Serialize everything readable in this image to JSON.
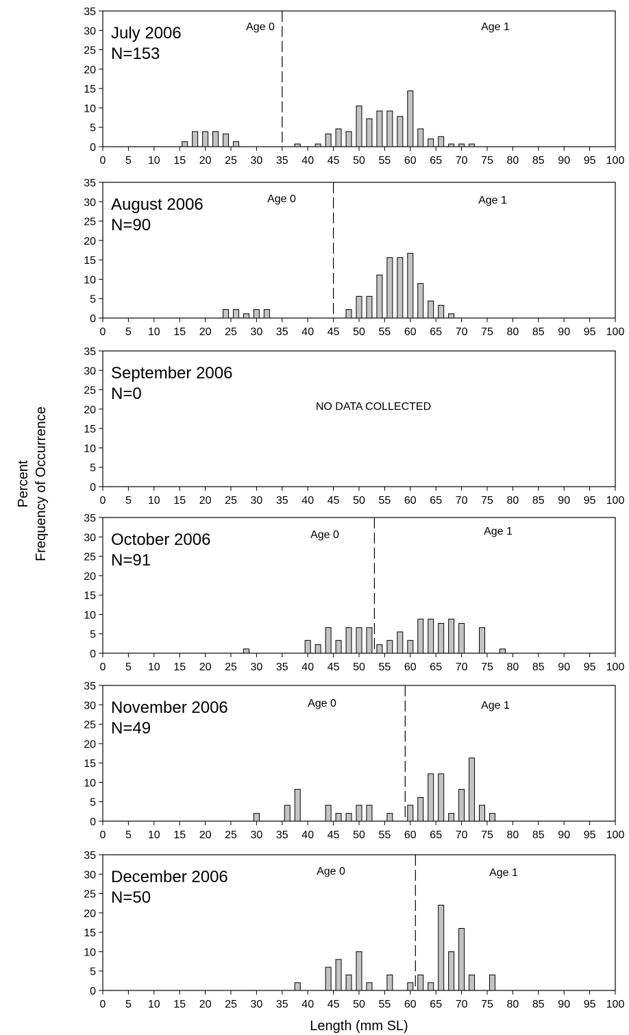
{
  "figure": {
    "ylabel_line1": "Percent",
    "ylabel_line2": "Frequency of Occurrence",
    "xlabel": "Length (mm SL)"
  },
  "chart_data": [
    {
      "type": "bar",
      "title": "July 2006",
      "subtitle": "N=153",
      "age0_label": "Age 0",
      "age1_label": "Age 1",
      "cutoff": 35,
      "note": "",
      "xlim": [
        0,
        100
      ],
      "ylim": [
        0,
        35
      ],
      "xticks": [
        0,
        5,
        10,
        15,
        20,
        25,
        30,
        35,
        40,
        45,
        50,
        55,
        60,
        65,
        70,
        75,
        80,
        85,
        90,
        95,
        100
      ],
      "yticks": [
        0,
        5,
        10,
        15,
        20,
        25,
        30,
        35
      ],
      "x": [
        16,
        18,
        20,
        22,
        24,
        26,
        38,
        42,
        44,
        46,
        48,
        50,
        52,
        54,
        56,
        58,
        60,
        62,
        64,
        66,
        68,
        70,
        72
      ],
      "values": [
        1.3,
        3.9,
        3.9,
        3.9,
        3.3,
        1.3,
        0.7,
        0.7,
        3.3,
        4.6,
        3.9,
        10.5,
        7.2,
        9.2,
        9.2,
        7.8,
        14.4,
        4.6,
        2.0,
        2.6,
        0.7,
        0.7,
        0.7
      ]
    },
    {
      "type": "bar",
      "title": "August 2006",
      "subtitle": "N=90",
      "age0_label": "Age 0",
      "age1_label": "Age 1",
      "cutoff": 45,
      "note": "",
      "xlim": [
        0,
        100
      ],
      "ylim": [
        0,
        35
      ],
      "xticks": [
        0,
        5,
        10,
        15,
        20,
        25,
        30,
        35,
        40,
        45,
        50,
        55,
        60,
        65,
        70,
        75,
        80,
        85,
        90,
        95,
        100
      ],
      "yticks": [
        0,
        5,
        10,
        15,
        20,
        25,
        30,
        35
      ],
      "x": [
        24,
        26,
        28,
        30,
        32,
        48,
        50,
        52,
        54,
        56,
        58,
        60,
        62,
        64,
        66,
        68
      ],
      "values": [
        2.2,
        2.2,
        1.1,
        2.2,
        2.2,
        2.2,
        5.6,
        5.6,
        11.1,
        15.6,
        15.6,
        16.7,
        8.9,
        4.4,
        3.3,
        1.1
      ]
    },
    {
      "type": "bar",
      "title": "September 2006",
      "subtitle": "N=0",
      "age0_label": "",
      "age1_label": "",
      "cutoff": null,
      "note": "NO DATA COLLECTED",
      "xlim": [
        0,
        100
      ],
      "ylim": [
        0,
        35
      ],
      "xticks": [
        0,
        5,
        10,
        15,
        20,
        25,
        30,
        35,
        40,
        45,
        50,
        55,
        60,
        65,
        70,
        75,
        80,
        85,
        90,
        95,
        100
      ],
      "yticks": [
        0,
        5,
        10,
        15,
        20,
        25,
        30,
        35
      ],
      "x": [],
      "values": []
    },
    {
      "type": "bar",
      "title": "October 2006",
      "subtitle": "N=91",
      "age0_label": "Age 0",
      "age1_label": "Age 1",
      "cutoff": 53,
      "note": "",
      "xlim": [
        0,
        100
      ],
      "ylim": [
        0,
        35
      ],
      "xticks": [
        0,
        5,
        10,
        15,
        20,
        25,
        30,
        35,
        40,
        45,
        50,
        55,
        60,
        65,
        70,
        75,
        80,
        85,
        90,
        95,
        100
      ],
      "yticks": [
        0,
        5,
        10,
        15,
        20,
        25,
        30,
        35
      ],
      "x": [
        28,
        40,
        42,
        44,
        46,
        48,
        50,
        52,
        54,
        56,
        58,
        60,
        62,
        64,
        66,
        68,
        70,
        74,
        78
      ],
      "values": [
        1.1,
        3.3,
        2.2,
        6.6,
        3.3,
        6.6,
        6.6,
        6.6,
        2.2,
        3.3,
        5.5,
        3.3,
        8.8,
        8.8,
        7.7,
        8.8,
        7.7,
        6.6,
        1.1
      ]
    },
    {
      "type": "bar",
      "title": "November 2006",
      "subtitle": "N=49",
      "age0_label": "Age 0",
      "age1_label": "Age 1",
      "cutoff": 59,
      "note": "",
      "xlim": [
        0,
        100
      ],
      "ylim": [
        0,
        35
      ],
      "xticks": [
        0,
        5,
        10,
        15,
        20,
        25,
        30,
        35,
        40,
        45,
        50,
        55,
        60,
        65,
        70,
        75,
        80,
        85,
        90,
        95,
        100
      ],
      "yticks": [
        0,
        5,
        10,
        15,
        20,
        25,
        30,
        35
      ],
      "x": [
        30,
        36,
        38,
        44,
        46,
        48,
        50,
        52,
        56,
        60,
        62,
        64,
        66,
        68,
        70,
        72,
        74,
        76
      ],
      "values": [
        2.0,
        4.1,
        8.2,
        4.1,
        2.0,
        2.0,
        4.1,
        4.1,
        2.0,
        4.1,
        6.1,
        12.2,
        12.2,
        2.0,
        8.2,
        16.3,
        4.1,
        2.0
      ]
    },
    {
      "type": "bar",
      "title": "December 2006",
      "subtitle": "N=50",
      "age0_label": "Age 0",
      "age1_label": "Age 1",
      "cutoff": 61,
      "note": "",
      "xlim": [
        0,
        100
      ],
      "ylim": [
        0,
        35
      ],
      "xticks": [
        0,
        5,
        10,
        15,
        20,
        25,
        30,
        35,
        40,
        45,
        50,
        55,
        60,
        65,
        70,
        75,
        80,
        85,
        90,
        95,
        100
      ],
      "yticks": [
        0,
        5,
        10,
        15,
        20,
        25,
        30,
        35
      ],
      "x": [
        38,
        44,
        46,
        48,
        50,
        52,
        56,
        60,
        62,
        64,
        66,
        68,
        70,
        72,
        76
      ],
      "values": [
        2,
        6,
        8,
        4,
        10,
        2,
        4,
        2,
        4,
        2,
        22,
        10,
        16,
        4,
        4
      ]
    }
  ]
}
